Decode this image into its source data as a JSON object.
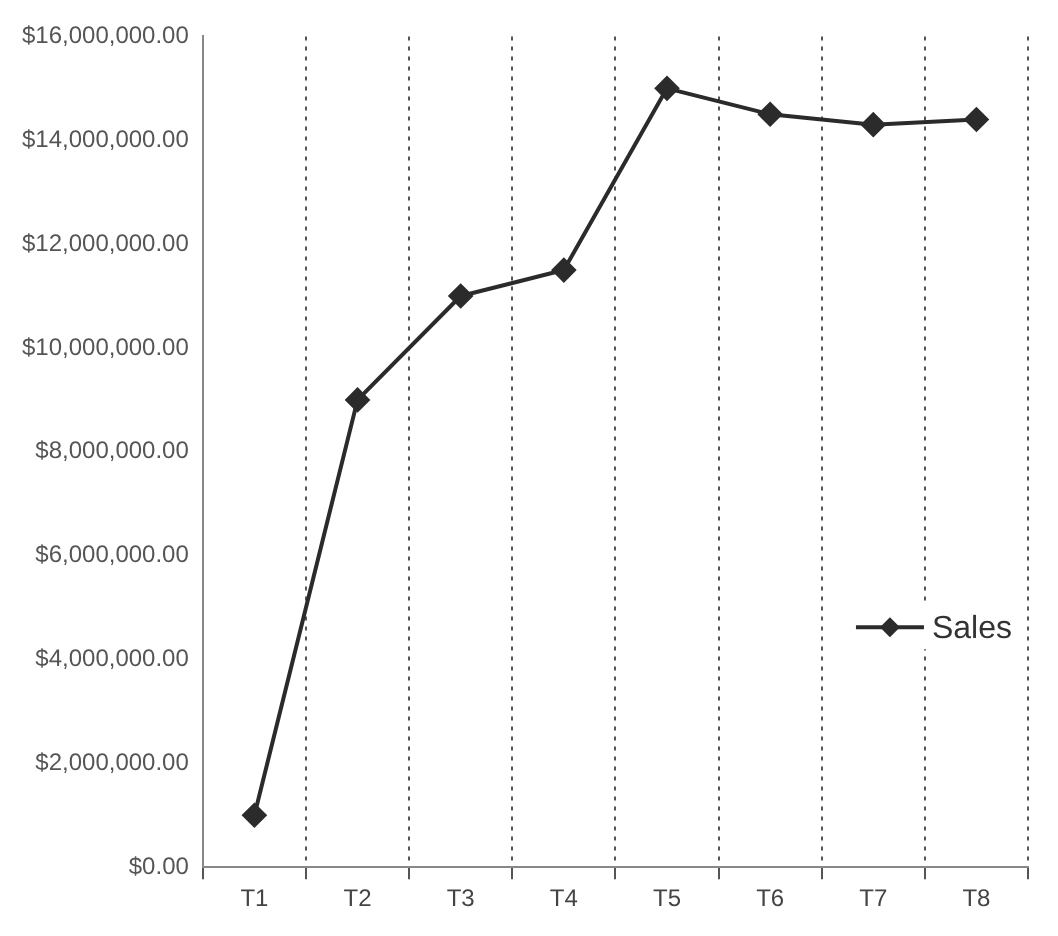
{
  "chart_data": {
    "type": "line",
    "categories": [
      "T1",
      "T2",
      "T3",
      "T4",
      "T5",
      "T6",
      "T7",
      "T8"
    ],
    "series": [
      {
        "name": "Sales",
        "color": "#2b2b2b",
        "values": [
          1000000,
          9000000,
          11000000,
          11500000,
          15000000,
          14500000,
          14300000,
          14400000
        ]
      }
    ],
    "ylim": [
      0,
      16000000
    ],
    "yticks": [
      {
        "value": 0,
        "label": "$0.00"
      },
      {
        "value": 2000000,
        "label": "$2,000,000.00"
      },
      {
        "value": 4000000,
        "label": "$4,000,000.00"
      },
      {
        "value": 6000000,
        "label": "$6,000,000.00"
      },
      {
        "value": 8000000,
        "label": "$8,000,000.00"
      },
      {
        "value": 10000000,
        "label": "$10,000,000.00"
      },
      {
        "value": 12000000,
        "label": "$12,000,000.00"
      },
      {
        "value": 14000000,
        "label": "$14,000,000.00"
      },
      {
        "value": 16000000,
        "label": "$16,000,000.00"
      }
    ],
    "grid": "x",
    "legend": "bottom right",
    "marker": "diamond",
    "line_style": "solid"
  }
}
